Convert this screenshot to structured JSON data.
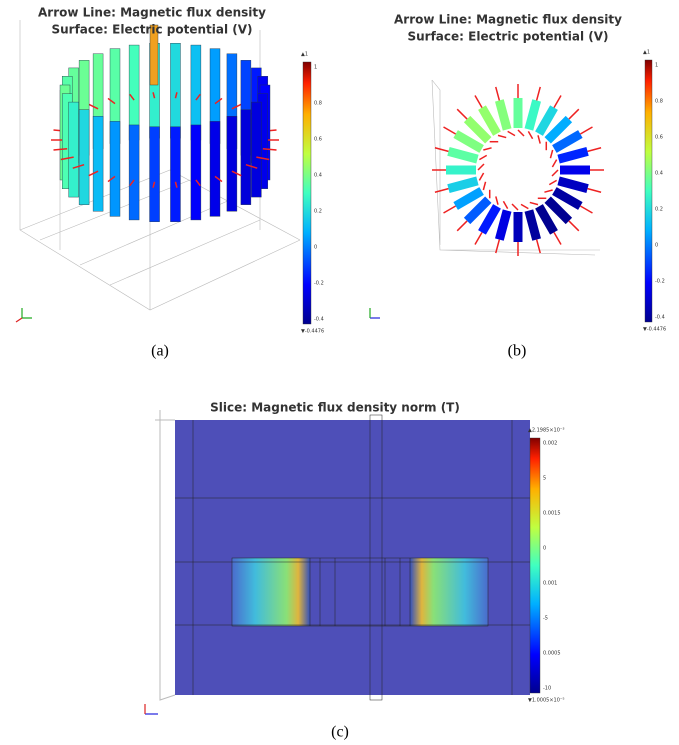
{
  "panels": [
    {
      "title_lines": [
        "Arrow Line: Magnetic flux density",
        "Surface: Electric potential (V)"
      ],
      "max_label": "▲1",
      "colorbar_labels": [
        "1",
        "0.8",
        "0.6",
        "0.4",
        "0.2",
        "0",
        "-0.2",
        "-0.4"
      ],
      "min_label": "▼-0.4476",
      "caption": "(a)"
    },
    {
      "title_lines": [
        "Arrow Line: Magnetic flux density",
        "Surface: Electric potential (V)"
      ],
      "max_label": "▲1",
      "colorbar_labels": [
        "1",
        "0.8",
        "0.6",
        "0.4",
        "0.2",
        "0",
        "-0.2",
        "-0.4"
      ],
      "min_label": "▼-0.4476",
      "caption": "(b)"
    },
    {
      "title_lines": [
        "Slice: Magnetic flux density norm (T)"
      ],
      "max_label": "▲2.1985×10⁻³",
      "colorbar_labels": [
        "0.002",
        "5",
        "0.0015",
        "0",
        "0.001",
        "-5",
        "0.0005",
        "-10"
      ],
      "min_label": "▼1.0005×10⁻⁵",
      "caption": "(c)"
    }
  ]
}
